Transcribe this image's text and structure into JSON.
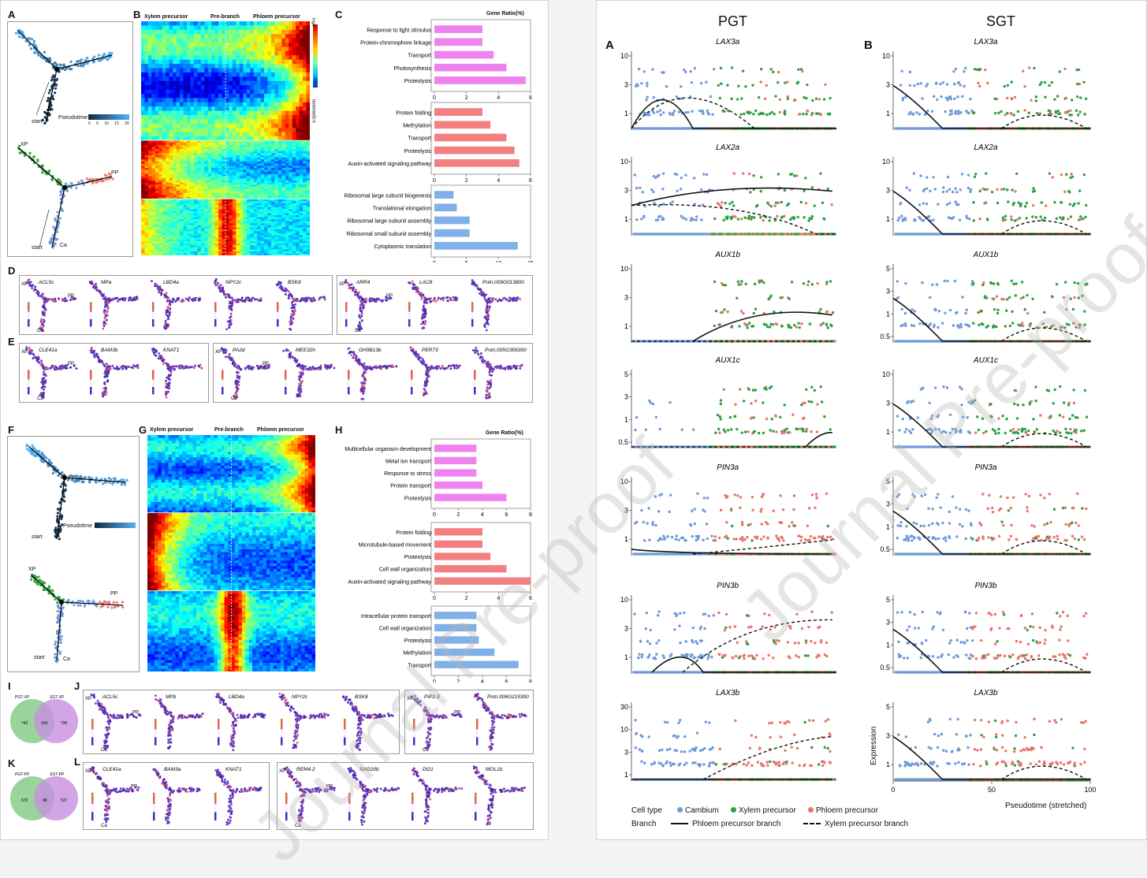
{
  "watermark": "Journal Pre-proof",
  "left": {
    "labels": {
      "A": "A",
      "B": "B",
      "C": "C",
      "D": "D",
      "E": "E",
      "F": "F",
      "G": "G",
      "H": "H",
      "I": "I",
      "J": "J",
      "K": "K",
      "L": "L"
    },
    "trajectory": {
      "start": "start",
      "pseudotime": "Pseudotime",
      "XP": "XP",
      "PP": "PP",
      "Ca": "Ca",
      "ticks": [
        "0",
        "5",
        "10",
        "15",
        "20"
      ]
    },
    "heatmap_top": {
      "xylem": "Xylem precursor",
      "prebranch": "Pre-branch",
      "phloem": "Phloem precursor",
      "high": "High",
      "low": "low",
      "expression": "Expression"
    },
    "heatmap_bottom": {
      "xylem": "Xylem precursor",
      "prebranch": "Pre-branch",
      "phloem": "Phloem precursor"
    },
    "go_top": {
      "title": "Gene Ratio(%)",
      "groups": [
        {
          "color": "#ee82ee",
          "terms": [
            "Response to light stimulus",
            "Protein-chromophore linkage",
            "Transport",
            "Photosynthesis",
            "Proteolysis"
          ],
          "values": [
            3,
            3,
            3.7,
            4.5,
            5.7
          ],
          "ticks": [
            "0",
            "2",
            "4",
            "6"
          ],
          "max": 6
        },
        {
          "color": "#f28080",
          "terms": [
            "Protein folding",
            "Methylation",
            "Transport",
            "Proteolysis",
            "Auxin-activated signaling pathway"
          ],
          "values": [
            3,
            3.5,
            4.5,
            5,
            5.3
          ],
          "ticks": [
            "0",
            "2",
            "4",
            "6"
          ],
          "max": 6
        },
        {
          "color": "#7fb0e8",
          "terms": [
            "Ribosomal large subunit biogenesis",
            "Translational elongation",
            "Ribosomal large subunit assembly",
            "Ribosomal small subunit assembly",
            "Cytoplasmic translation"
          ],
          "values": [
            3,
            3.5,
            5.5,
            5.5,
            13
          ],
          "ticks": [
            "0",
            "5",
            "10",
            "15"
          ],
          "max": 15
        }
      ]
    },
    "go_bottom": {
      "title": "Gene Ratio(%)",
      "groups": [
        {
          "color": "#ee82ee",
          "terms": [
            "Multicellular organism development",
            "Metal ion transport",
            "Response to stress",
            "Protein transport",
            "Proteolysis"
          ],
          "values": [
            3.5,
            3.5,
            3.5,
            4,
            6
          ],
          "ticks": [
            "0",
            "2",
            "4",
            "6",
            "8"
          ],
          "max": 8
        },
        {
          "color": "#f28080",
          "terms": [
            "Protein folding",
            "Microtubule-based movement",
            "Proteolysis",
            "Cell wall organization",
            "Auxin-activated signaling pathway"
          ],
          "values": [
            3,
            3,
            3.5,
            4.5,
            6
          ],
          "ticks": [
            "0",
            "2",
            "4",
            "6"
          ],
          "max": 6
        },
        {
          "color": "#7fb0e8",
          "terms": [
            "Intracellular protein transport",
            "Cell wall organization",
            "Proteolysis",
            "Methylation",
            "Transport"
          ],
          "values": [
            3.5,
            3.5,
            3.7,
            5,
            7
          ],
          "ticks": [
            "0",
            "2",
            "4",
            "6",
            "8"
          ],
          "max": 8
        }
      ]
    },
    "D_genes": [
      "ACL5c",
      "MPa",
      "LBD4a",
      "NPY2c",
      "BSK8"
    ],
    "D2_genes": [
      "ARR4",
      "LAC8",
      "Potri.009G013800"
    ],
    "E_genes": [
      "CLE41a",
      "BAM3b",
      "KNAT1"
    ],
    "E2_genes": [
      "PA2d",
      "MEE32h",
      "GH9B13b",
      "PER73",
      "Potri.005G306300"
    ],
    "J_genes": [
      "ACL5c",
      "MPb",
      "LBD4a",
      "NPY2c",
      "BSK8"
    ],
    "J2_genes": [
      "PIP2.3",
      "Potri.006G215300"
    ],
    "L_genes": [
      "CLE41a",
      "BAM3a",
      "KNAT1"
    ],
    "L2_genes": [
      "REM4.2",
      "SAG20b",
      "DI21",
      "MOL1b"
    ],
    "venn_I": {
      "left_label": "PGT-XP",
      "right_label": "SGT-XP",
      "left": "742",
      "mid": "164",
      "right": "735"
    },
    "venn_K": {
      "left_label": "PGT-PP",
      "right_label": "SGT-PP",
      "left": "670",
      "mid": "98",
      "right": "537"
    }
  },
  "right": {
    "col_titles": [
      "PGT",
      "SGT"
    ],
    "panel_labels": [
      "A",
      "B"
    ],
    "genes": [
      "LAX3a",
      "LAX2a",
      "AUX1b",
      "AUX1c",
      "PIN3a",
      "PIN3b",
      "LAX3b"
    ],
    "yticks_pgt": [
      [
        "10",
        "3",
        "1"
      ],
      [
        "10",
        "3",
        "1"
      ],
      [
        "10",
        "3",
        "1"
      ],
      [
        "5",
        "3",
        "1",
        "0.5"
      ],
      [
        "10",
        "3",
        "1"
      ],
      [
        "10",
        "3",
        "1"
      ],
      [
        "30",
        "10",
        "3",
        "1"
      ]
    ],
    "yticks_sgt": [
      [
        "10",
        "3",
        "1"
      ],
      [
        "10",
        "3",
        "1"
      ],
      [
        "5",
        "3",
        "1",
        "0.5"
      ],
      [
        "10",
        "3",
        "1"
      ],
      [
        "5",
        "3",
        "1",
        "0.5"
      ],
      [
        "5",
        "3",
        "1",
        "0.5"
      ],
      [
        "5",
        "3",
        "1"
      ]
    ],
    "xticks": [
      "0",
      "50",
      "100"
    ],
    "xlabel": "Pseudotime (stretched)",
    "ylabel": "Expression",
    "legend": {
      "cell_type_label": "Cell type",
      "cell_types": [
        {
          "name": "Cambium",
          "color": "#6f9ad9"
        },
        {
          "name": "Xylem precursor",
          "color": "#2ea043"
        },
        {
          "name": "Phloem precursor",
          "color": "#e8766b"
        }
      ],
      "branch_label": "Branch",
      "branches": [
        {
          "name": "Phloem precursor branch",
          "style": "solid"
        },
        {
          "name": "Xylem precursor branch",
          "style": "dashed"
        }
      ]
    }
  }
}
